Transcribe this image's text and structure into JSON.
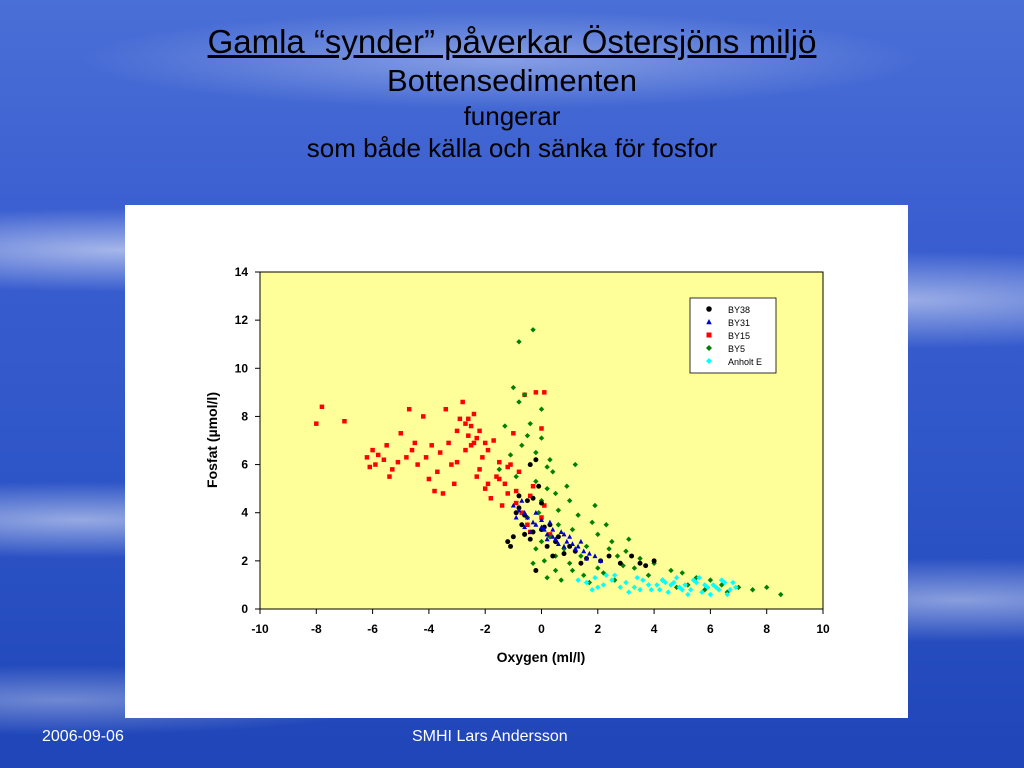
{
  "slide": {
    "title_line1": "Gamla “synder” påverkar Östersjöns miljö",
    "title_line2": "Bottensedimenten",
    "title_line3": "fungerar",
    "title_line4": "som både källa och sänka för fosfor",
    "footer_date": "2006-09-06",
    "footer_center": "SMHI  Lars Andersson"
  },
  "chart_data": {
    "type": "scatter",
    "xlabel": "Oxygen (ml/l)",
    "ylabel": "Fosfat (µmol/l)",
    "xlim": [
      -10,
      10
    ],
    "ylim": [
      0,
      14
    ],
    "xticks": [
      -10,
      -8,
      -6,
      -4,
      -2,
      0,
      2,
      4,
      6,
      8,
      10
    ],
    "yticks": [
      0,
      2,
      4,
      6,
      8,
      10,
      12,
      14
    ],
    "legend_position": "top-right",
    "grid": false,
    "plot_background": "#ffff99",
    "series": [
      {
        "name": "BY38",
        "marker": "circle",
        "color": "#000000",
        "points": [
          [
            -1.2,
            2.8
          ],
          [
            -1.0,
            3.0
          ],
          [
            -0.8,
            4.2
          ],
          [
            -0.5,
            4.5
          ],
          [
            -0.6,
            3.9
          ],
          [
            -0.3,
            3.2
          ],
          [
            -0.4,
            2.9
          ],
          [
            -0.2,
            1.6
          ],
          [
            -0.4,
            6.0
          ],
          [
            0.0,
            4.4
          ],
          [
            0.1,
            3.4
          ],
          [
            -0.7,
            3.5
          ],
          [
            -0.9,
            4.0
          ],
          [
            -0.3,
            4.6
          ],
          [
            0.2,
            2.6
          ],
          [
            0.5,
            2.8
          ],
          [
            0.8,
            2.3
          ],
          [
            1.2,
            2.4
          ],
          [
            1.6,
            2.1
          ],
          [
            2.1,
            2.0
          ],
          [
            2.4,
            2.2
          ],
          [
            2.8,
            1.9
          ],
          [
            3.2,
            2.2
          ],
          [
            3.5,
            1.9
          ],
          [
            3.7,
            1.8
          ],
          [
            4.0,
            2.0
          ],
          [
            0.0,
            3.3
          ],
          [
            -0.1,
            5.1
          ],
          [
            -0.6,
            3.1
          ],
          [
            0.3,
            3.5
          ],
          [
            0.6,
            3.0
          ],
          [
            1.0,
            2.6
          ],
          [
            1.4,
            1.9
          ],
          [
            -1.1,
            2.6
          ],
          [
            0.4,
            2.2
          ],
          [
            -0.8,
            4.7
          ],
          [
            -0.2,
            6.2
          ]
        ]
      },
      {
        "name": "BY31",
        "marker": "triangle",
        "color": "#0000cc",
        "points": [
          [
            -1.0,
            4.3
          ],
          [
            -0.8,
            4.1
          ],
          [
            -0.6,
            4.0
          ],
          [
            -0.5,
            3.8
          ],
          [
            -0.3,
            3.6
          ],
          [
            -0.2,
            3.5
          ],
          [
            0.0,
            3.4
          ],
          [
            0.1,
            3.3
          ],
          [
            0.2,
            3.1
          ],
          [
            0.4,
            3.0
          ],
          [
            0.5,
            2.9
          ],
          [
            0.7,
            3.2
          ],
          [
            0.8,
            3.1
          ],
          [
            0.9,
            2.8
          ],
          [
            1.1,
            2.7
          ],
          [
            1.3,
            2.6
          ],
          [
            1.5,
            2.4
          ],
          [
            1.7,
            2.3
          ],
          [
            1.9,
            2.2
          ],
          [
            2.1,
            2.0
          ],
          [
            -0.7,
            4.5
          ],
          [
            -0.4,
            3.2
          ],
          [
            0.3,
            3.6
          ],
          [
            0.6,
            2.7
          ],
          [
            1.0,
            3.0
          ],
          [
            1.2,
            2.5
          ],
          [
            -0.9,
            3.8
          ],
          [
            0.0,
            3.7
          ],
          [
            0.4,
            3.3
          ],
          [
            0.8,
            2.6
          ],
          [
            1.4,
            2.8
          ],
          [
            -0.2,
            4.0
          ],
          [
            0.2,
            2.9
          ],
          [
            1.6,
            2.1
          ],
          [
            -0.6,
            3.4
          ]
        ]
      },
      {
        "name": "BY15",
        "marker": "square",
        "color": "#ff0000",
        "points": [
          [
            -8.0,
            7.7
          ],
          [
            -7.8,
            8.4
          ],
          [
            -7.0,
            7.8
          ],
          [
            -6.2,
            6.3
          ],
          [
            -6.0,
            6.6
          ],
          [
            -5.9,
            6.0
          ],
          [
            -5.8,
            6.4
          ],
          [
            -5.6,
            6.2
          ],
          [
            -5.5,
            6.8
          ],
          [
            -5.3,
            5.8
          ],
          [
            -5.1,
            6.1
          ],
          [
            -5.0,
            7.3
          ],
          [
            -4.8,
            6.3
          ],
          [
            -4.7,
            8.3
          ],
          [
            -4.5,
            6.9
          ],
          [
            -4.4,
            6.0
          ],
          [
            -4.2,
            8.0
          ],
          [
            -4.1,
            6.3
          ],
          [
            -4.0,
            5.4
          ],
          [
            -3.9,
            6.8
          ],
          [
            -3.7,
            5.7
          ],
          [
            -3.6,
            6.5
          ],
          [
            -3.5,
            4.8
          ],
          [
            -3.4,
            8.3
          ],
          [
            -3.3,
            6.9
          ],
          [
            -3.1,
            5.2
          ],
          [
            -3.0,
            6.1
          ],
          [
            -2.9,
            7.9
          ],
          [
            -2.8,
            8.6
          ],
          [
            -2.7,
            7.7
          ],
          [
            -2.6,
            7.2
          ],
          [
            -2.5,
            7.6
          ],
          [
            -2.4,
            6.9
          ],
          [
            -2.3,
            7.1
          ],
          [
            -2.2,
            5.8
          ],
          [
            -2.1,
            6.3
          ],
          [
            -2.0,
            5.0
          ],
          [
            -1.9,
            6.6
          ],
          [
            -1.8,
            4.6
          ],
          [
            -1.7,
            7.0
          ],
          [
            -1.6,
            5.5
          ],
          [
            -1.5,
            6.1
          ],
          [
            -1.4,
            4.3
          ],
          [
            -1.3,
            5.2
          ],
          [
            -1.2,
            4.8
          ],
          [
            -1.1,
            6.0
          ],
          [
            -1.0,
            7.3
          ],
          [
            -0.9,
            4.4
          ],
          [
            -0.8,
            5.7
          ],
          [
            -0.7,
            4.0
          ],
          [
            -0.6,
            8.9
          ],
          [
            -0.5,
            3.5
          ],
          [
            -0.4,
            4.7
          ],
          [
            -0.3,
            5.1
          ],
          [
            -0.2,
            9.0
          ],
          [
            0.0,
            7.5
          ],
          [
            0.1,
            9.0
          ],
          [
            -2.6,
            7.9
          ],
          [
            -2.4,
            8.1
          ],
          [
            -2.2,
            7.4
          ],
          [
            -2.5,
            6.8
          ],
          [
            -2.7,
            6.6
          ],
          [
            -2.3,
            5.5
          ],
          [
            -1.9,
            5.2
          ],
          [
            -3.2,
            6.0
          ],
          [
            -3.8,
            4.9
          ],
          [
            -2.0,
            6.9
          ],
          [
            -1.5,
            5.4
          ],
          [
            -0.9,
            4.9
          ],
          [
            -0.4,
            3.2
          ],
          [
            0.0,
            3.8
          ],
          [
            0.3,
            3.1
          ],
          [
            0.1,
            4.3
          ],
          [
            -6.1,
            5.9
          ],
          [
            -5.4,
            5.5
          ],
          [
            -4.6,
            6.6
          ],
          [
            -3.0,
            7.4
          ],
          [
            -1.2,
            5.9
          ]
        ]
      },
      {
        "name": "BY5",
        "marker": "diamond",
        "color": "#008000",
        "points": [
          [
            -0.3,
            11.6
          ],
          [
            -0.8,
            11.1
          ],
          [
            -1.0,
            9.2
          ],
          [
            -0.6,
            8.9
          ],
          [
            -0.8,
            8.6
          ],
          [
            0.0,
            8.3
          ],
          [
            -1.3,
            7.6
          ],
          [
            -0.4,
            7.7
          ],
          [
            0.0,
            7.1
          ],
          [
            -0.7,
            6.8
          ],
          [
            -0.2,
            6.5
          ],
          [
            0.3,
            6.2
          ],
          [
            -1.5,
            5.8
          ],
          [
            -0.9,
            5.5
          ],
          [
            -0.2,
            5.3
          ],
          [
            0.2,
            5.0
          ],
          [
            0.5,
            4.8
          ],
          [
            1.0,
            4.5
          ],
          [
            0.6,
            4.1
          ],
          [
            1.3,
            3.9
          ],
          [
            1.8,
            3.6
          ],
          [
            1.1,
            3.3
          ],
          [
            2.0,
            3.1
          ],
          [
            2.5,
            2.8
          ],
          [
            1.6,
            2.6
          ],
          [
            3.0,
            2.4
          ],
          [
            2.7,
            2.2
          ],
          [
            3.5,
            2.1
          ],
          [
            4.0,
            1.9
          ],
          [
            3.3,
            1.7
          ],
          [
            4.6,
            1.6
          ],
          [
            5.0,
            1.5
          ],
          [
            5.5,
            1.3
          ],
          [
            6.0,
            1.2
          ],
          [
            6.4,
            1.0
          ],
          [
            7.0,
            0.9
          ],
          [
            7.5,
            0.8
          ],
          [
            8.0,
            0.9
          ],
          [
            8.5,
            0.6
          ],
          [
            0.1,
            2.0
          ],
          [
            0.5,
            1.6
          ],
          [
            1.0,
            1.9
          ],
          [
            1.5,
            1.4
          ],
          [
            2.0,
            1.7
          ],
          [
            0.3,
            3.0
          ],
          [
            0.8,
            2.5
          ],
          [
            -0.2,
            2.5
          ],
          [
            -0.5,
            3.8
          ],
          [
            0.0,
            4.5
          ],
          [
            0.4,
            5.7
          ],
          [
            0.9,
            5.1
          ],
          [
            1.2,
            6.0
          ],
          [
            0.6,
            3.5
          ],
          [
            1.4,
            2.2
          ],
          [
            2.2,
            1.5
          ],
          [
            2.9,
            1.8
          ],
          [
            3.8,
            1.4
          ],
          [
            4.3,
            1.2
          ],
          [
            5.2,
            1.0
          ],
          [
            5.8,
            0.8
          ],
          [
            6.6,
            0.7
          ],
          [
            0.2,
            1.3
          ],
          [
            -0.3,
            1.9
          ],
          [
            0.7,
            1.2
          ],
          [
            1.7,
            1.1
          ],
          [
            2.4,
            2.5
          ],
          [
            3.1,
            2.9
          ],
          [
            1.9,
            4.3
          ],
          [
            2.3,
            3.5
          ],
          [
            0.0,
            2.8
          ],
          [
            -0.1,
            4.0
          ],
          [
            0.5,
            2.2
          ],
          [
            1.1,
            1.6
          ],
          [
            2.6,
            1.2
          ],
          [
            4.8,
            0.9
          ],
          [
            -0.6,
            3.1
          ],
          [
            -1.1,
            6.4
          ],
          [
            -0.5,
            7.2
          ],
          [
            0.2,
            5.9
          ]
        ]
      },
      {
        "name": "Anholt E",
        "marker": "diamond",
        "color": "#00ffff",
        "points": [
          [
            1.3,
            1.2
          ],
          [
            1.6,
            1.1
          ],
          [
            1.9,
            1.3
          ],
          [
            2.2,
            1.0
          ],
          [
            2.5,
            1.2
          ],
          [
            2.8,
            0.9
          ],
          [
            3.0,
            1.1
          ],
          [
            3.3,
            0.9
          ],
          [
            3.6,
            1.2
          ],
          [
            3.9,
            0.8
          ],
          [
            4.1,
            1.0
          ],
          [
            4.3,
            1.2
          ],
          [
            4.5,
            0.7
          ],
          [
            4.7,
            1.1
          ],
          [
            4.9,
            0.9
          ],
          [
            5.1,
            1.0
          ],
          [
            5.3,
            0.8
          ],
          [
            5.5,
            1.1
          ],
          [
            5.7,
            0.7
          ],
          [
            5.9,
            0.9
          ],
          [
            6.1,
            1.0
          ],
          [
            6.3,
            0.8
          ],
          [
            6.5,
            1.1
          ],
          [
            6.7,
            0.8
          ],
          [
            6.9,
            0.9
          ],
          [
            2.0,
            0.9
          ],
          [
            2.6,
            1.4
          ],
          [
            3.4,
            1.3
          ],
          [
            4.2,
            0.8
          ],
          [
            4.8,
            1.3
          ],
          [
            5.2,
            0.6
          ],
          [
            5.6,
            1.3
          ],
          [
            6.0,
            0.6
          ],
          [
            6.4,
            1.2
          ],
          [
            1.8,
            0.8
          ],
          [
            3.1,
            0.7
          ],
          [
            3.8,
            1.0
          ],
          [
            4.6,
            1.0
          ],
          [
            5.4,
            1.2
          ],
          [
            6.2,
            0.9
          ],
          [
            6.8,
            1.1
          ],
          [
            2.3,
            1.4
          ],
          [
            3.5,
            0.8
          ],
          [
            4.4,
            1.1
          ],
          [
            5.0,
            0.8
          ],
          [
            5.8,
            1.0
          ],
          [
            6.6,
            0.6
          ]
        ]
      }
    ]
  }
}
